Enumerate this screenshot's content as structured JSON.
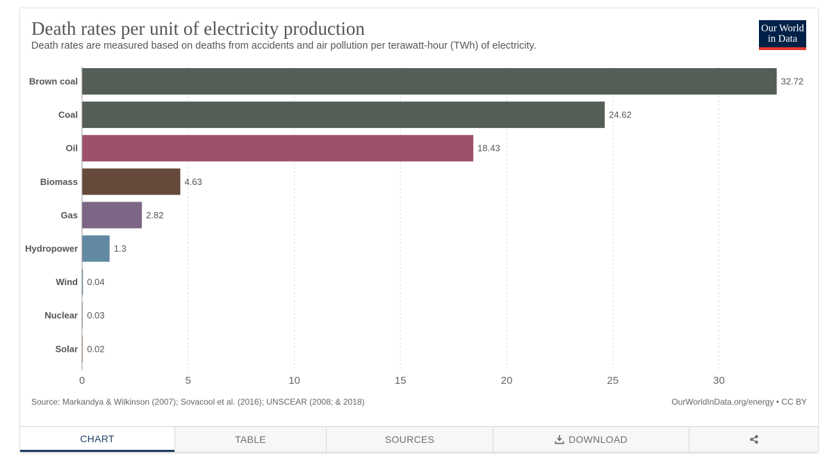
{
  "header": {
    "title": "Death rates per unit of electricity production",
    "subtitle": "Death rates are measured based on deaths from accidents and air pollution per terawatt-hour (TWh) of electricity."
  },
  "logo": {
    "line1": "Our World",
    "line2": "in Data",
    "colors": {
      "background": "#002147",
      "underline": "#e63b2e"
    }
  },
  "chart_data": {
    "type": "bar",
    "orientation": "horizontal",
    "title": "Death rates per unit of electricity production",
    "subtitle": "Death rates are measured based on deaths from accidents and air pollution per terawatt-hour (TWh) of electricity.",
    "xlabel": "",
    "ylabel": "",
    "xlim": [
      0,
      33
    ],
    "x_ticks": [
      0,
      5,
      10,
      15,
      20,
      25,
      30
    ],
    "grid": "vertical dashed",
    "categories": [
      "Brown coal",
      "Coal",
      "Oil",
      "Biomass",
      "Gas",
      "Hydropower",
      "Wind",
      "Nuclear",
      "Solar"
    ],
    "values": [
      32.72,
      24.62,
      18.43,
      4.63,
      2.82,
      1.3,
      0.04,
      0.03,
      0.02
    ],
    "value_labels": [
      "32.72",
      "24.62",
      "18.43",
      "4.63",
      "2.82",
      "1.3",
      "0.04",
      "0.03",
      "0.02"
    ],
    "colors": [
      "#545e57",
      "#545e57",
      "#9d5269",
      "#654a3c",
      "#7c6585",
      "#6189a2",
      "#3f6f88",
      "#9aa3a8",
      "#b58c6c"
    ]
  },
  "footer": {
    "source": "Source: Markandya & Wilkinson (2007); Sovacool et al. (2016); UNSCEAR (2008; & 2018)",
    "license": "OurWorldInData.org/energy • CC BY"
  },
  "tabs": [
    {
      "label": "CHART",
      "icon": ""
    },
    {
      "label": "TABLE",
      "icon": ""
    },
    {
      "label": "SOURCES",
      "icon": ""
    },
    {
      "label": "DOWNLOAD",
      "icon": "download-icon"
    },
    {
      "label": "",
      "icon": "share-icon"
    }
  ],
  "colors": {
    "active_tab": "#1d3d63",
    "text": "#555555"
  }
}
